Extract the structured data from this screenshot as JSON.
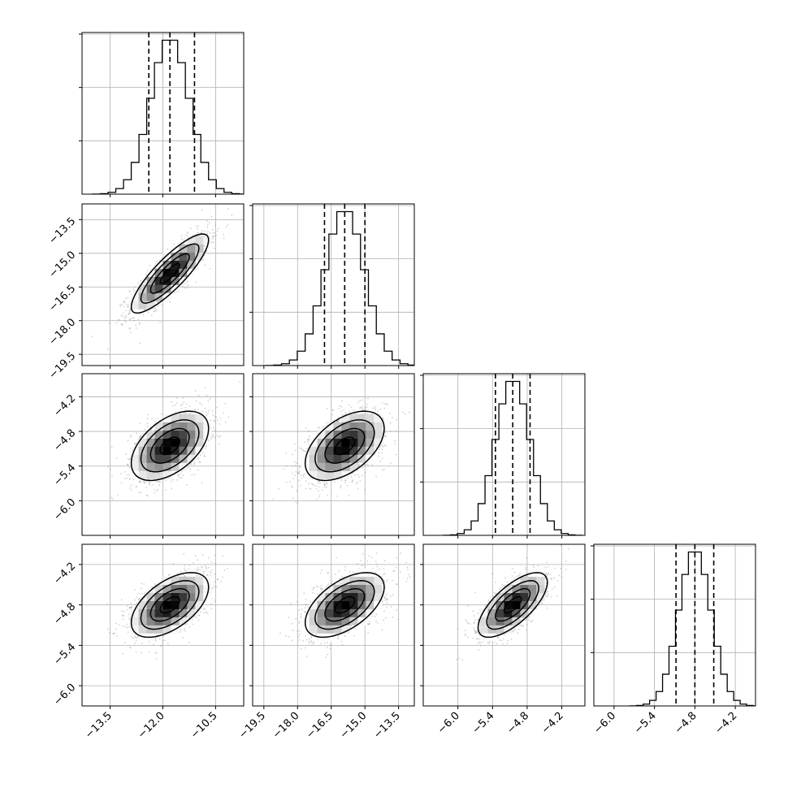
{
  "chart_data": {
    "type": "corner",
    "n_params": 4,
    "grid": true,
    "colors": {
      "line": "#000000",
      "scatter": "#7a7a7a",
      "grid": "#b0b0b0"
    },
    "params": [
      {
        "range": [
          -14.3,
          -9.7
        ],
        "ticks": [
          -13.5,
          -12.0,
          -10.5
        ],
        "tick_labels": [
          "−13.5",
          "−12.0",
          "−10.5"
        ],
        "mean": -11.8,
        "sd": 0.55,
        "quantiles": [
          -12.4,
          -11.8,
          -11.1
        ]
      },
      {
        "range": [
          -20.0,
          -12.8
        ],
        "ticks": [
          -19.5,
          -18.0,
          -16.5,
          -15.0,
          -13.5
        ],
        "tick_labels": [
          "−19.5",
          "−18.0",
          "−16.5",
          "−15.0",
          "−13.5"
        ],
        "mean": -15.9,
        "sd": 0.88,
        "quantiles": [
          -16.8,
          -15.9,
          -15.0
        ]
      },
      {
        "range": [
          -6.6,
          -3.8
        ],
        "ticks": [
          -6.0,
          -5.4,
          -4.8,
          -4.2
        ],
        "tick_labels": [
          "−6.0",
          "−5.4",
          "−4.8",
          "−4.2"
        ],
        "mean": -5.05,
        "sd": 0.3,
        "quantiles": [
          -5.35,
          -5.05,
          -4.75
        ]
      },
      {
        "range": [
          -6.3,
          -3.9
        ],
        "ticks": [
          -6.0,
          -5.4,
          -4.8,
          -4.2
        ],
        "tick_labels": [
          "−6.0",
          "−5.4",
          "−4.8",
          "−4.2"
        ],
        "mean": -4.8,
        "sd": 0.24,
        "quantiles": [
          -5.08,
          -4.8,
          -4.52
        ]
      }
    ],
    "correlations": [
      [
        1.0,
        0.85,
        0.5,
        0.55
      ],
      [
        0.85,
        1.0,
        0.5,
        0.55
      ],
      [
        0.5,
        0.5,
        1.0,
        0.7
      ],
      [
        0.55,
        0.55,
        0.7,
        1.0
      ]
    ],
    "histogram_bins": 20,
    "contour_levels_sigma": [
      0.5,
      1.0,
      1.5,
      2.0
    ],
    "scatter_points_per_panel": 1500
  }
}
